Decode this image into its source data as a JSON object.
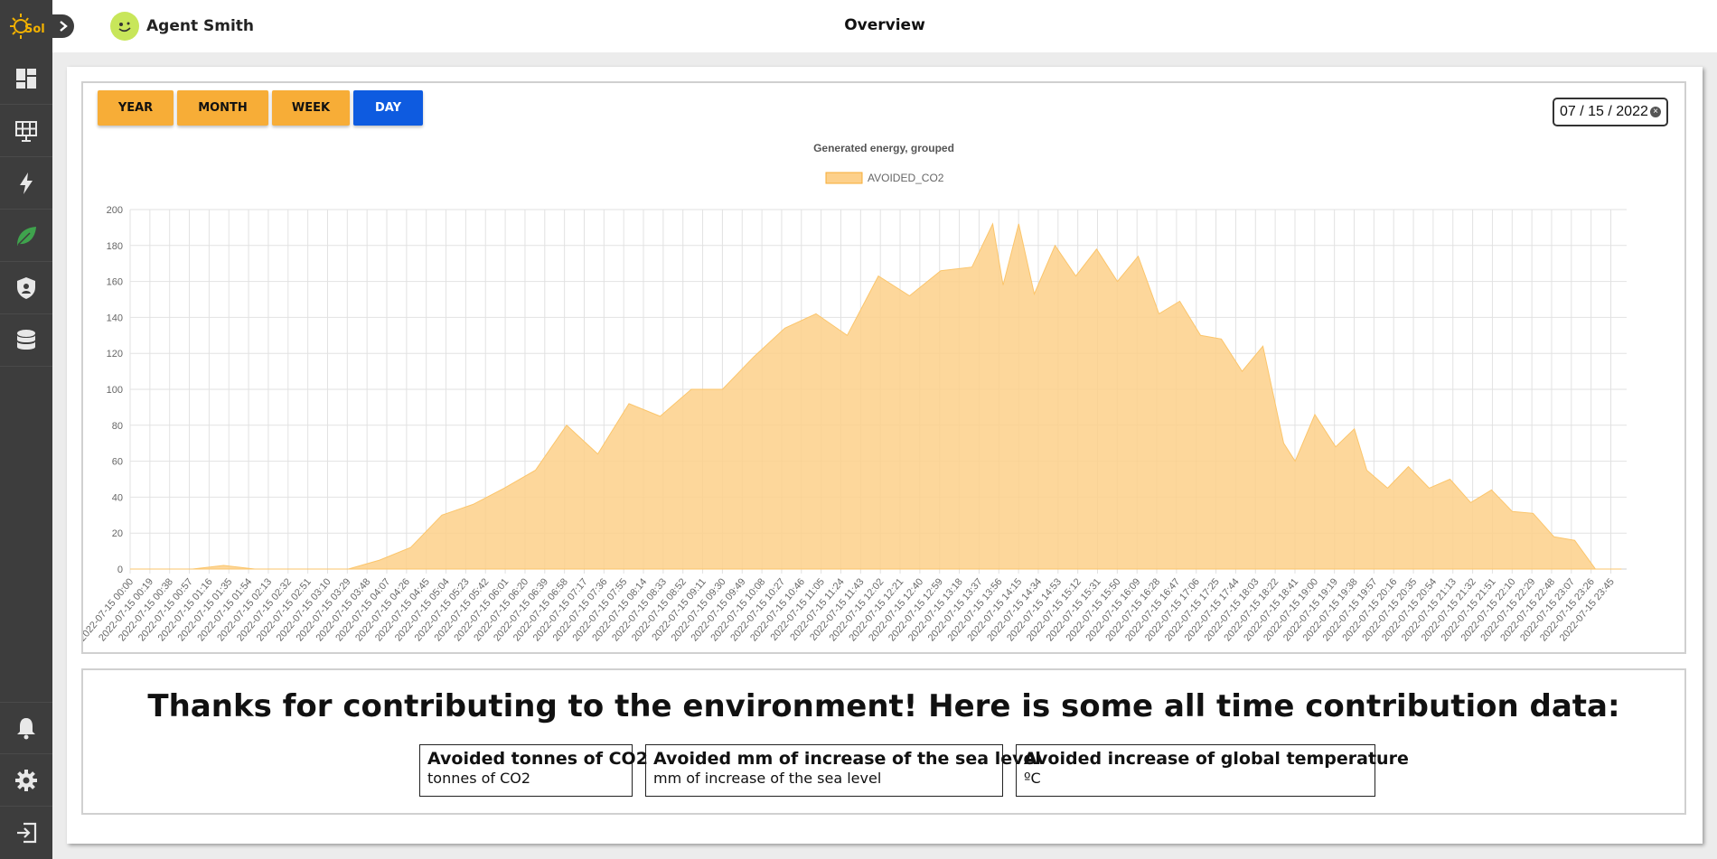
{
  "app": {
    "logo_text": "Sol"
  },
  "sidebar": {
    "items": [
      {
        "name": "dashboard-icon"
      },
      {
        "name": "solar-panel-icon"
      },
      {
        "name": "lightning-icon"
      },
      {
        "name": "leaf-icon",
        "active": true
      },
      {
        "name": "shield-icon"
      },
      {
        "name": "database-icon"
      }
    ],
    "bottom_items": [
      {
        "name": "bell-icon"
      },
      {
        "name": "gear-icon"
      },
      {
        "name": "logout-icon"
      }
    ]
  },
  "header": {
    "user_name": "Agent Smith",
    "title": "Overview"
  },
  "range_buttons": [
    {
      "label": "YEAR",
      "active": false
    },
    {
      "label": "MONTH",
      "active": false
    },
    {
      "label": "WEEK",
      "active": false
    },
    {
      "label": "DAY",
      "active": true
    }
  ],
  "date_picker": {
    "value": "07 / 15 / 2022"
  },
  "colors": {
    "accent": "#f7ad37",
    "active": "#0e5be0",
    "area_fill": "#fdd08a",
    "sidebar": "#3d3d3d"
  },
  "chart_data": {
    "type": "area",
    "title": "Generated energy, grouped",
    "series": [
      {
        "name": "AVOIDED_CO2"
      }
    ],
    "ylim": [
      0,
      200
    ],
    "yticks": [
      0,
      20,
      40,
      60,
      80,
      100,
      120,
      140,
      160,
      180,
      200
    ],
    "grid": true,
    "legend": "top-center",
    "xticks": [
      "2022-07-15 00:00",
      "2022-07-15 00:19",
      "2022-07-15 00:38",
      "2022-07-15 00:57",
      "2022-07-15 01:16",
      "2022-07-15 01:35",
      "2022-07-15 01:54",
      "2022-07-15 02:13",
      "2022-07-15 02:32",
      "2022-07-15 02:51",
      "2022-07-15 03:10",
      "2022-07-15 03:29",
      "2022-07-15 03:48",
      "2022-07-15 04:07",
      "2022-07-15 04:26",
      "2022-07-15 04:45",
      "2022-07-15 05:04",
      "2022-07-15 05:23",
      "2022-07-15 05:42",
      "2022-07-15 06:01",
      "2022-07-15 06:20",
      "2022-07-15 06:39",
      "2022-07-15 06:58",
      "2022-07-15 07:17",
      "2022-07-15 07:36",
      "2022-07-15 07:55",
      "2022-07-15 08:14",
      "2022-07-15 08:33",
      "2022-07-15 08:52",
      "2022-07-15 09:11",
      "2022-07-15 09:30",
      "2022-07-15 09:49",
      "2022-07-15 10:08",
      "2022-07-15 10:27",
      "2022-07-15 10:46",
      "2022-07-15 11:05",
      "2022-07-15 11:24",
      "2022-07-15 11:43",
      "2022-07-15 12:02",
      "2022-07-15 12:21",
      "2022-07-15 12:40",
      "2022-07-15 12:59",
      "2022-07-15 13:18",
      "2022-07-15 13:37",
      "2022-07-15 13:56",
      "2022-07-15 14:15",
      "2022-07-15 14:34",
      "2022-07-15 14:53",
      "2022-07-15 15:12",
      "2022-07-15 15:31",
      "2022-07-15 15:50",
      "2022-07-15 16:09",
      "2022-07-15 16:28",
      "2022-07-15 16:47",
      "2022-07-15 17:06",
      "2022-07-15 17:25",
      "2022-07-15 17:44",
      "2022-07-15 18:03",
      "2022-07-15 18:22",
      "2022-07-15 18:41",
      "2022-07-15 19:00",
      "2022-07-15 19:19",
      "2022-07-15 19:38",
      "2022-07-15 19:57",
      "2022-07-15 20:16",
      "2022-07-15 20:35",
      "2022-07-15 20:54",
      "2022-07-15 21:13",
      "2022-07-15 21:32",
      "2022-07-15 21:51",
      "2022-07-15 22:10",
      "2022-07-15 22:29",
      "2022-07-15 22:48",
      "2022-07-15 23:07",
      "2022-07-15 23:26",
      "2022-07-15 23:45"
    ],
    "x": [
      "00:00",
      "00:30",
      "01:00",
      "01:30",
      "02:00",
      "02:30",
      "03:00",
      "03:30",
      "04:00",
      "04:30",
      "05:00",
      "05:30",
      "06:00",
      "06:30",
      "07:00",
      "07:30",
      "08:00",
      "08:30",
      "09:00",
      "09:30",
      "10:00",
      "10:30",
      "11:00",
      "11:30",
      "12:00",
      "12:30",
      "13:00",
      "13:30",
      "13:50",
      "14:00",
      "14:15",
      "14:30",
      "14:50",
      "15:10",
      "15:30",
      "15:50",
      "16:10",
      "16:30",
      "16:50",
      "17:10",
      "17:30",
      "17:50",
      "18:10",
      "18:30",
      "18:41",
      "19:00",
      "19:20",
      "19:38",
      "19:50",
      "20:10",
      "20:30",
      "20:50",
      "21:10",
      "21:30",
      "21:50",
      "22:10",
      "22:30",
      "22:50",
      "23:10",
      "23:30",
      "23:45",
      "23:55"
    ],
    "values": [
      0,
      0,
      0,
      2,
      0,
      0,
      0,
      0,
      5,
      12,
      30,
      36,
      45,
      55,
      80,
      64,
      92,
      85,
      100,
      100,
      118,
      134,
      142,
      130,
      163,
      152,
      166,
      168,
      192,
      158,
      192,
      153,
      180,
      163,
      178,
      160,
      174,
      142,
      149,
      130,
      128,
      110,
      124,
      70,
      60,
      86,
      68,
      78,
      55,
      45,
      57,
      45,
      50,
      37,
      44,
      32,
      31,
      18,
      16,
      0,
      0,
      0
    ]
  },
  "contribution": {
    "title": "Thanks for contributing to the environment! Here is some all time contribution data:",
    "stats": [
      {
        "title": "Avoided tonnes of CO2",
        "value": "tonnes of CO2"
      },
      {
        "title": "Avoided mm of increase of the sea level",
        "value": "mm of increase of the sea level"
      },
      {
        "title": "Avoided increase of global temperature",
        "value": "ºC"
      }
    ]
  }
}
